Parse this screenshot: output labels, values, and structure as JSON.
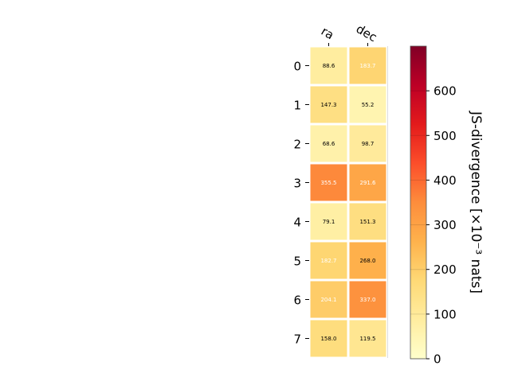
{
  "chart_data": {
    "type": "heatmap",
    "x_categories": [
      "ra",
      "dec"
    ],
    "y_categories": [
      "0",
      "1",
      "2",
      "3",
      "4",
      "5",
      "6",
      "7"
    ],
    "values": [
      [
        88.6,
        183.7
      ],
      [
        147.3,
        55.2
      ],
      [
        68.6,
        98.7
      ],
      [
        355.5,
        291.6
      ],
      [
        79.1,
        151.3
      ],
      [
        182.7,
        268.0
      ],
      [
        204.1,
        337.0
      ],
      [
        158.0,
        119.5
      ]
    ],
    "cell_labels": [
      [
        "88.6",
        "183.7"
      ],
      [
        "147.3",
        "55.2"
      ],
      [
        "68.6",
        "98.7"
      ],
      [
        "355.5",
        "291.6"
      ],
      [
        "79.1",
        "151.3"
      ],
      [
        "182.7",
        "268.0"
      ],
      [
        "204.1",
        "337.0"
      ],
      [
        "158.0",
        "119.5"
      ]
    ],
    "colorbar": {
      "label": "JS-divergence [×10⁻³ nats]",
      "range": [
        0,
        700
      ],
      "ticks": [
        "0",
        "100",
        "200",
        "300",
        "400",
        "500",
        "600"
      ],
      "colormap": "YlOrRd"
    },
    "colors": {
      "ylorrd": [
        "#ffffcc",
        "#ffeda0",
        "#fed976",
        "#feb24c",
        "#fd8d3c",
        "#fc4e2a",
        "#e31a1c",
        "#bd0026",
        "#800026"
      ]
    }
  }
}
